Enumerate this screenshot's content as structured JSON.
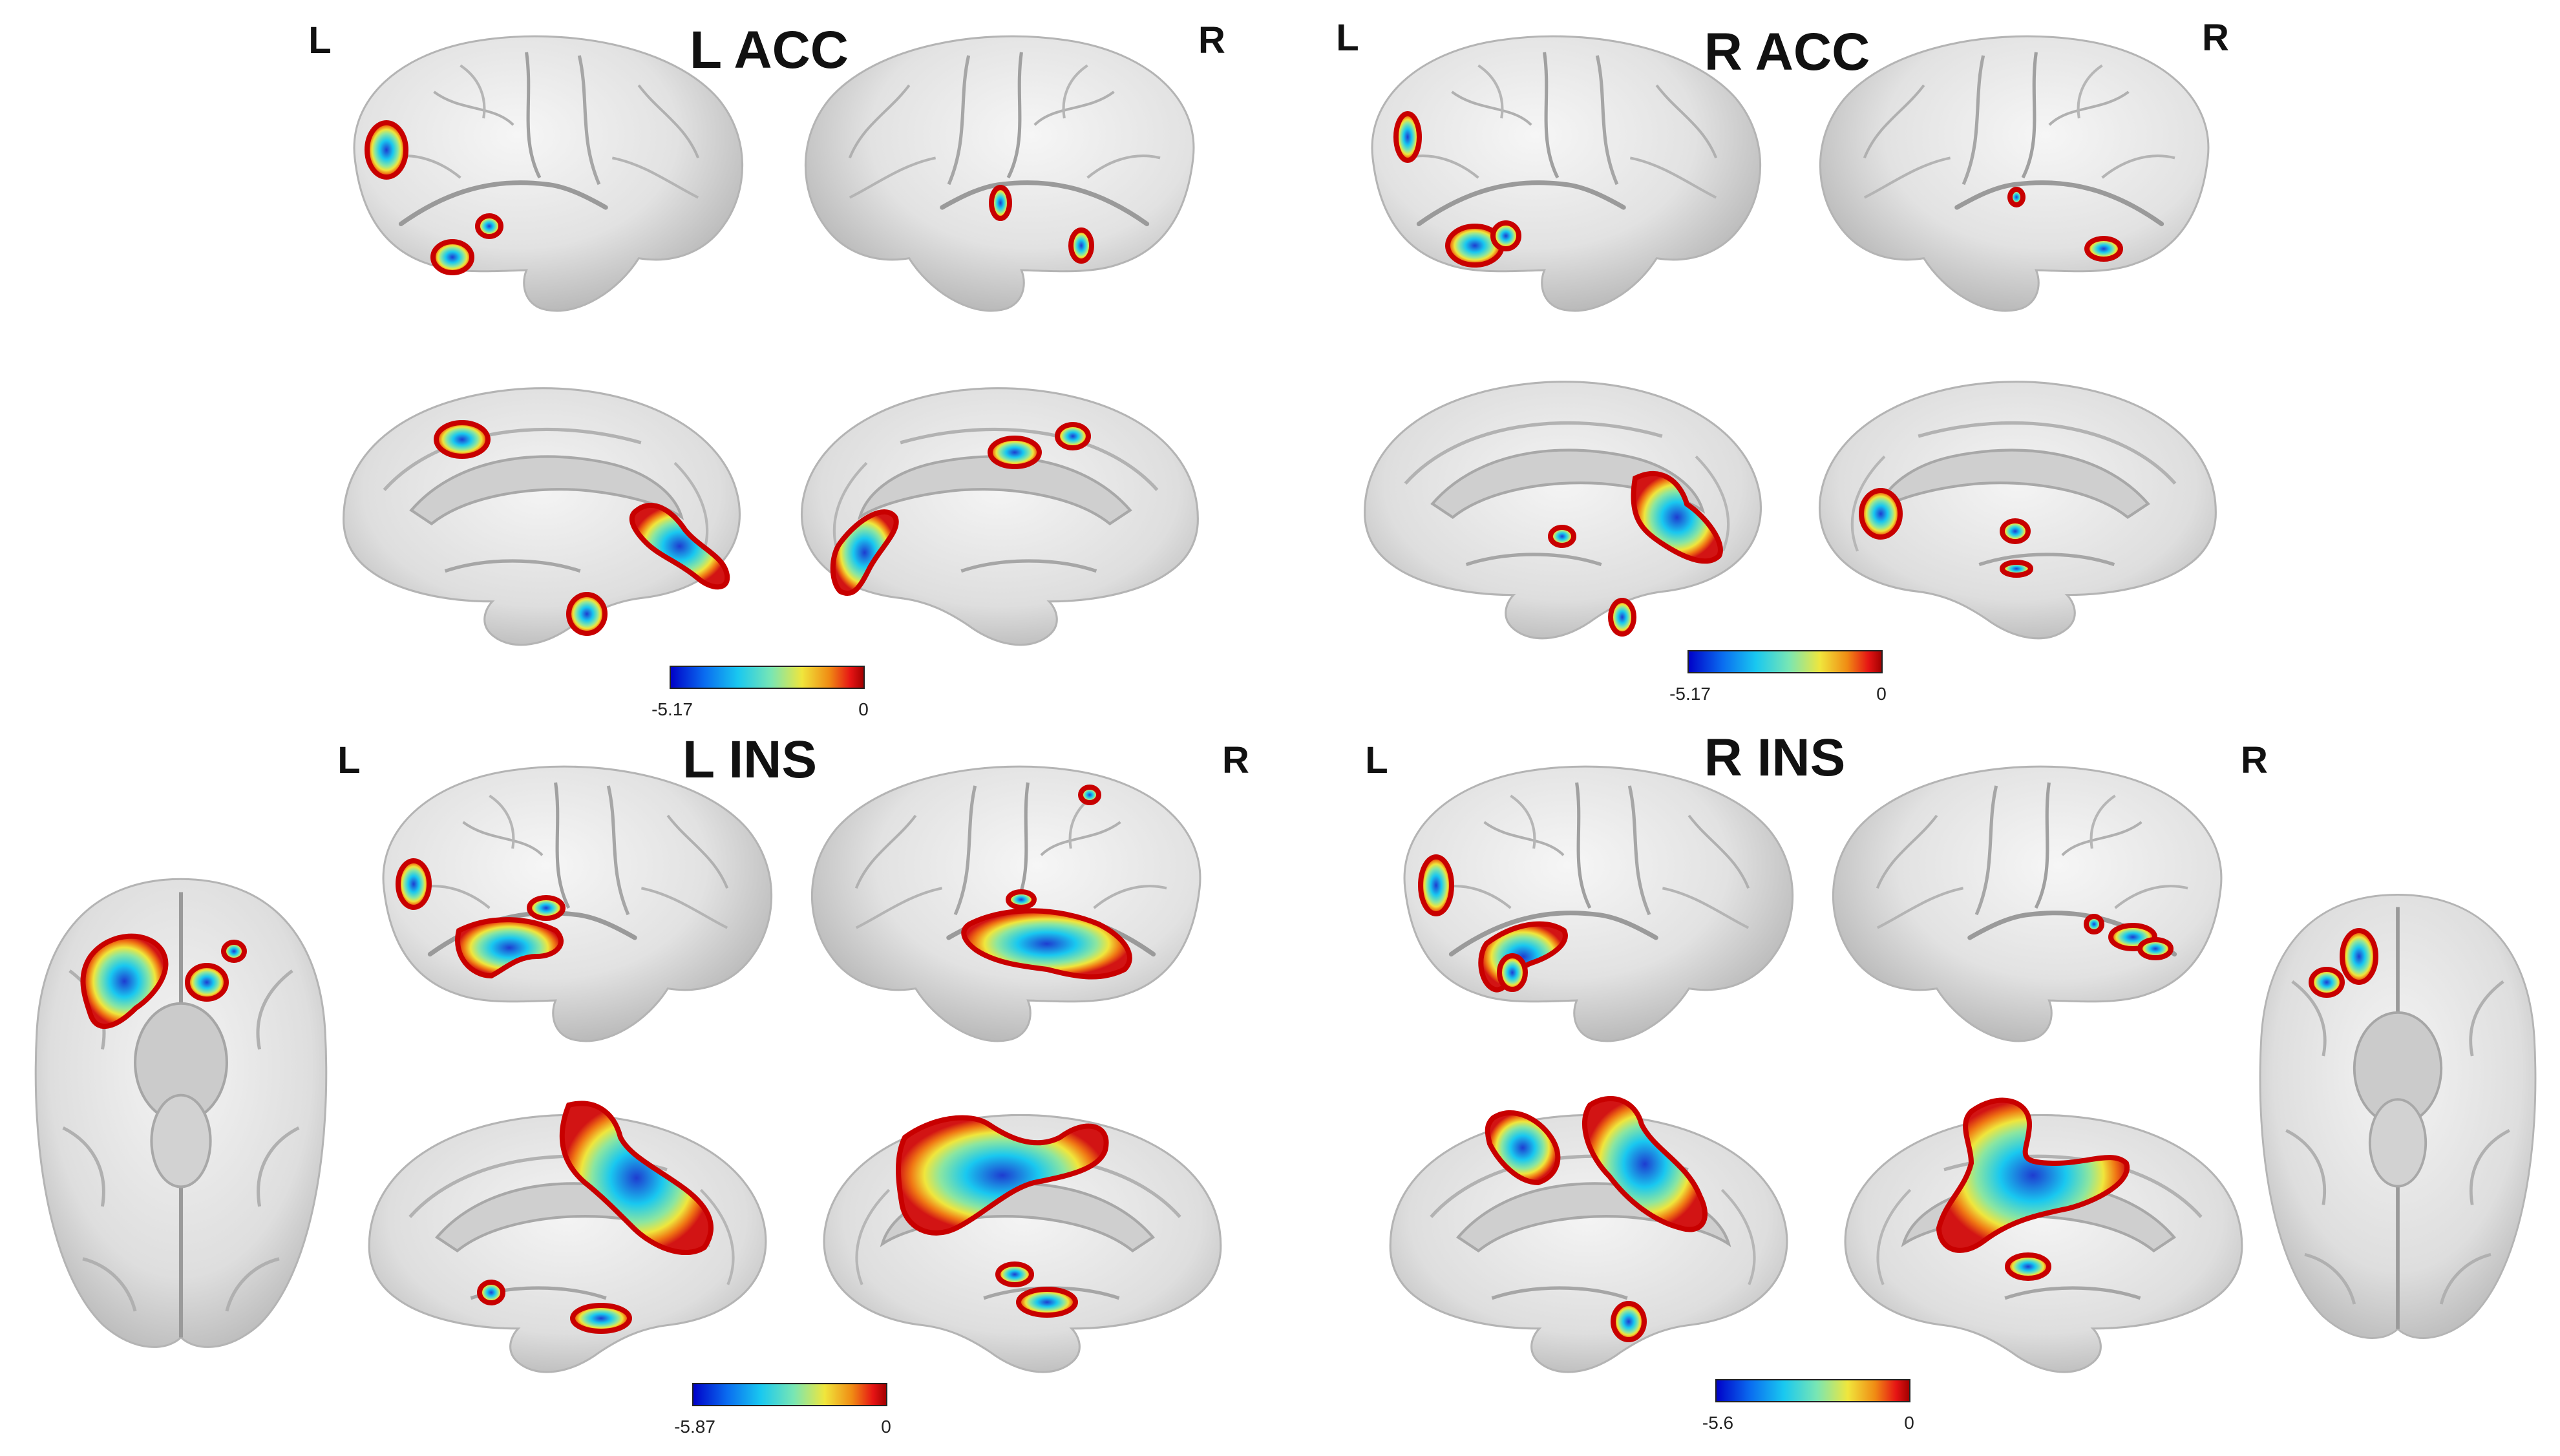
{
  "panels": [
    {
      "title": "L ACC",
      "left_label": "L",
      "right_label": "R",
      "colorbar": {
        "min": "-5.17",
        "max": "0"
      }
    },
    {
      "title": "R ACC",
      "left_label": "L",
      "right_label": "R",
      "colorbar": {
        "min": "-5.17",
        "max": "0"
      }
    },
    {
      "title": "L INS",
      "left_label": "L",
      "right_label": "R",
      "colorbar": {
        "min": "-5.87",
        "max": "0"
      }
    },
    {
      "title": "R INS",
      "left_label": "L",
      "right_label": "R",
      "colorbar": {
        "min": "-5.6",
        "max": "0"
      }
    }
  ],
  "colors": {
    "background": "#ffffff",
    "brain_surface": "#e4e4e4",
    "brain_shadow": "#9c9c9c",
    "colormap": [
      "#0000c8",
      "#0a6ef0",
      "#19c8f0",
      "#78e6b4",
      "#f0e63c",
      "#f08c14",
      "#e61414",
      "#a00000"
    ]
  },
  "icons": [
    "brain-lateral-view",
    "brain-medial-view",
    "brain-ventral-view",
    "activation-blob"
  ]
}
